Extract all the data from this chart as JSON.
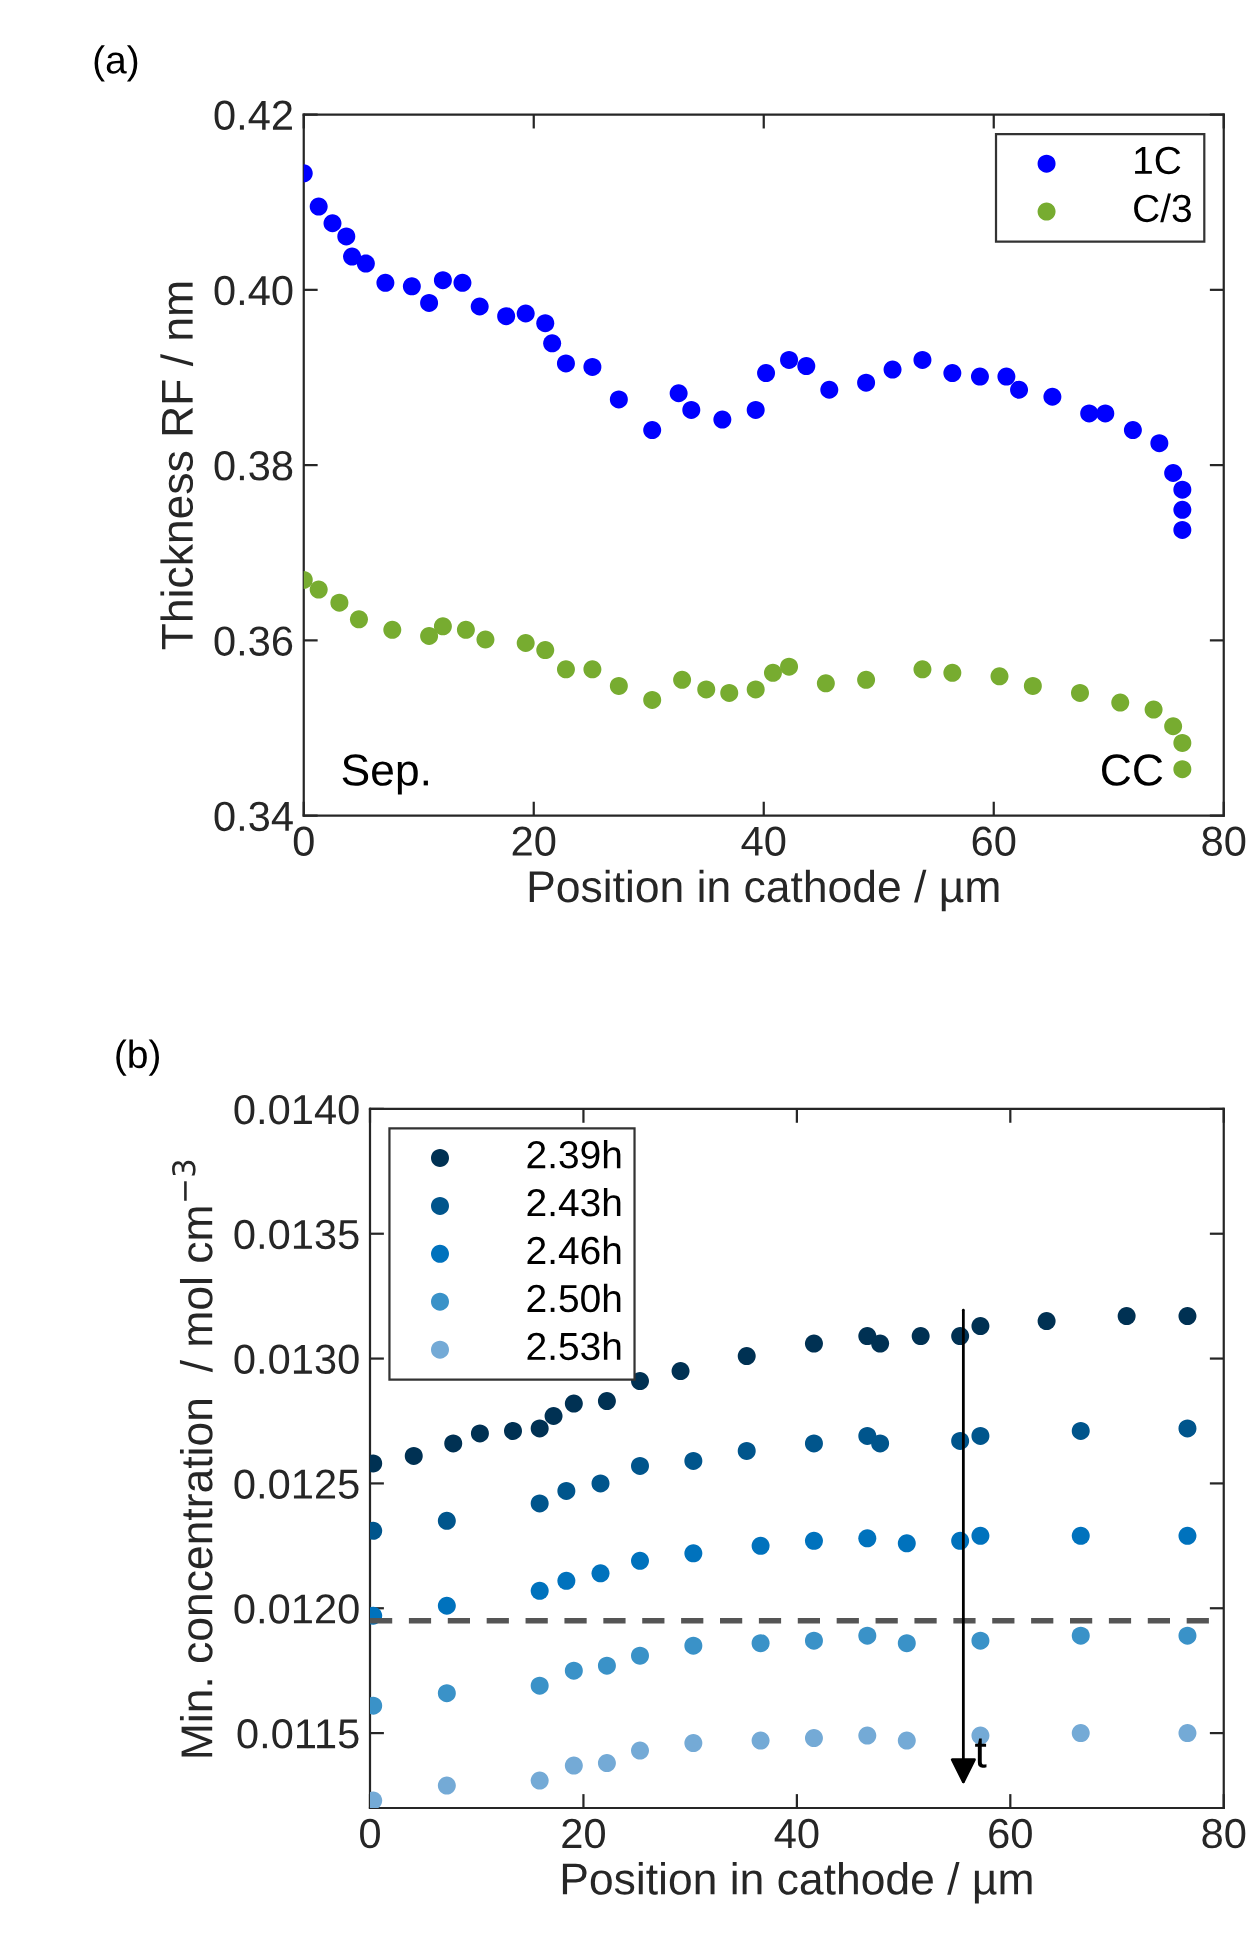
{
  "chart_data": [
    {
      "type": "scatter",
      "title": "(a)",
      "xlabel": "Position in cathode / µm",
      "ylabel": "Thickness RF / nm",
      "marker": "circle",
      "legend": "top right",
      "grid": false,
      "xlim": [
        0,
        80
      ],
      "xticks": [
        0,
        20,
        40,
        60,
        80
      ],
      "ylim": [
        0.34,
        0.42
      ],
      "yticks": [
        {
          "value": 0.34,
          "label": "0.34"
        },
        {
          "value": 0.36,
          "label": "0.36"
        },
        {
          "value": 0.38,
          "label": "0.38"
        },
        {
          "value": 0.4,
          "label": "0.40"
        },
        {
          "value": 0.42,
          "label": "0.42"
        }
      ],
      "annotations": [
        "Sep.",
        "CC"
      ],
      "series": [
        {
          "name": "1C",
          "color": "#0000ff",
          "x": [
            0,
            1.3,
            2.5,
            3.7,
            4.2,
            5.4,
            7.1,
            9.4,
            10.9,
            12.1,
            13.8,
            15.3,
            17.6,
            19.3,
            21.0,
            21.6,
            22.8,
            25.1,
            27.4,
            30.3,
            32.6,
            33.7,
            36.4,
            39.3,
            40.2,
            42.2,
            43.7,
            45.7,
            48.9,
            51.2,
            53.8,
            56.4,
            58.8,
            61.1,
            62.2,
            65.1,
            68.3,
            69.7,
            72.1,
            74.4,
            75.6,
            76.4,
            76.4,
            76.4
          ],
          "values": [
            0.4133,
            0.4095,
            0.4076,
            0.4061,
            0.4038,
            0.403,
            0.4008,
            0.4004,
            0.3985,
            0.4011,
            0.4008,
            0.3981,
            0.397,
            0.3973,
            0.3962,
            0.3939,
            0.3916,
            0.3912,
            0.3875,
            0.384,
            0.3882,
            0.3863,
            0.3852,
            0.3863,
            0.3905,
            0.392,
            0.3913,
            0.3886,
            0.3894,
            0.3909,
            0.392,
            0.3905,
            0.3901,
            0.3901,
            0.3886,
            0.3878,
            0.3859,
            0.3859,
            0.384,
            0.3825,
            0.3791,
            0.3772,
            0.3749,
            0.3726
          ]
        },
        {
          "name": "C/3",
          "color": "#77ac30",
          "x": [
            0,
            1.3,
            3.1,
            4.8,
            7.7,
            10.9,
            12.1,
            14.1,
            15.8,
            19.3,
            21.0,
            22.8,
            25.1,
            27.4,
            30.3,
            32.9,
            35.0,
            37.0,
            39.3,
            40.8,
            42.2,
            45.4,
            48.9,
            53.8,
            56.4,
            60.5,
            63.4,
            67.5,
            71.0,
            73.9,
            75.6,
            76.4,
            76.4
          ],
          "values": [
            0.3669,
            0.3658,
            0.3643,
            0.3624,
            0.3612,
            0.3605,
            0.3616,
            0.3612,
            0.3601,
            0.3597,
            0.3589,
            0.3567,
            0.3567,
            0.3548,
            0.3532,
            0.3555,
            0.3544,
            0.354,
            0.3544,
            0.3563,
            0.357,
            0.3551,
            0.3555,
            0.3567,
            0.3563,
            0.3559,
            0.3548,
            0.354,
            0.3529,
            0.3521,
            0.3502,
            0.3483,
            0.3453
          ]
        }
      ]
    },
    {
      "type": "scatter",
      "title": "(b)",
      "xlabel": "Position in cathode / µm",
      "ylabel": "Min. concentration  / mol cm$^{−3}$",
      "marker": "circle",
      "legend": "top left",
      "grid": false,
      "xlim": [
        0,
        80
      ],
      "xticks": [
        0,
        20,
        40,
        60,
        80
      ],
      "ylim": [
        0.0112,
        0.014
      ],
      "yticks": [
        {
          "value": 0.0115,
          "label": "0.0115"
        },
        {
          "value": 0.012,
          "label": "0.0120"
        },
        {
          "value": 0.0125,
          "label": "0.0125"
        },
        {
          "value": 0.013,
          "label": "0.0130"
        },
        {
          "value": 0.0135,
          "label": "0.0135"
        },
        {
          "value": 0.014,
          "label": "0.0140"
        }
      ],
      "ref_lines": [
        {
          "axis": "y",
          "value": 0.01195,
          "color": "#555555",
          "line_style": "dashed"
        }
      ],
      "annotations": [
        "t"
      ],
      "series": [
        {
          "name": "2.39h",
          "color": "#003153",
          "x": [
            0.3,
            4.1,
            7.8,
            10.3,
            13.4,
            15.9,
            17.2,
            19.1,
            22.2,
            25.3,
            29.1,
            35.3,
            41.6,
            46.6,
            47.8,
            51.6,
            55.3,
            57.2,
            63.4,
            70.9,
            76.6
          ],
          "values": [
            0.01258,
            0.01261,
            0.01266,
            0.0127,
            0.01271,
            0.01272,
            0.01277,
            0.01282,
            0.01283,
            0.01291,
            0.01295,
            0.01301,
            0.01306,
            0.01309,
            0.01306,
            0.01309,
            0.01309,
            0.01313,
            0.01315,
            0.01317,
            0.01317
          ]
        },
        {
          "name": "2.43h",
          "color": "#00558c",
          "x": [
            0.3,
            7.2,
            15.9,
            18.4,
            21.6,
            25.3,
            30.3,
            35.3,
            41.6,
            46.6,
            47.8,
            55.3,
            57.2,
            66.6,
            76.6
          ],
          "values": [
            0.01231,
            0.01235,
            0.01242,
            0.01247,
            0.0125,
            0.01257,
            0.01259,
            0.01263,
            0.01266,
            0.01269,
            0.01266,
            0.01267,
            0.01269,
            0.01271,
            0.01272
          ]
        },
        {
          "name": "2.46h",
          "color": "#0072bd",
          "x": [
            0.3,
            7.2,
            15.9,
            18.4,
            21.6,
            25.3,
            30.3,
            36.6,
            41.6,
            46.6,
            50.3,
            55.3,
            57.2,
            66.6,
            76.6
          ],
          "values": [
            0.01197,
            0.01201,
            0.01207,
            0.01211,
            0.01214,
            0.01219,
            0.01222,
            0.01225,
            0.01227,
            0.01228,
            0.01226,
            0.01227,
            0.01229,
            0.01229,
            0.01229
          ]
        },
        {
          "name": "2.50h",
          "color": "#3a92c8",
          "x": [
            0.3,
            7.2,
            15.9,
            19.1,
            22.2,
            25.3,
            30.3,
            36.6,
            41.6,
            46.6,
            50.3,
            57.2,
            66.6,
            76.6
          ],
          "values": [
            0.01161,
            0.01166,
            0.01169,
            0.01175,
            0.01177,
            0.01181,
            0.01185,
            0.01186,
            0.01187,
            0.01189,
            0.01186,
            0.01187,
            0.01189,
            0.01189
          ]
        },
        {
          "name": "2.53h",
          "color": "#74aad6",
          "x": [
            0.3,
            7.2,
            15.9,
            19.1,
            22.2,
            25.3,
            30.3,
            36.6,
            41.6,
            46.6,
            50.3,
            57.2,
            66.6,
            76.6
          ],
          "values": [
            0.01123,
            0.01129,
            0.01131,
            0.01137,
            0.01138,
            0.01143,
            0.01146,
            0.01147,
            0.01148,
            0.01149,
            0.01147,
            0.01149,
            0.0115,
            0.0115
          ]
        }
      ]
    }
  ]
}
